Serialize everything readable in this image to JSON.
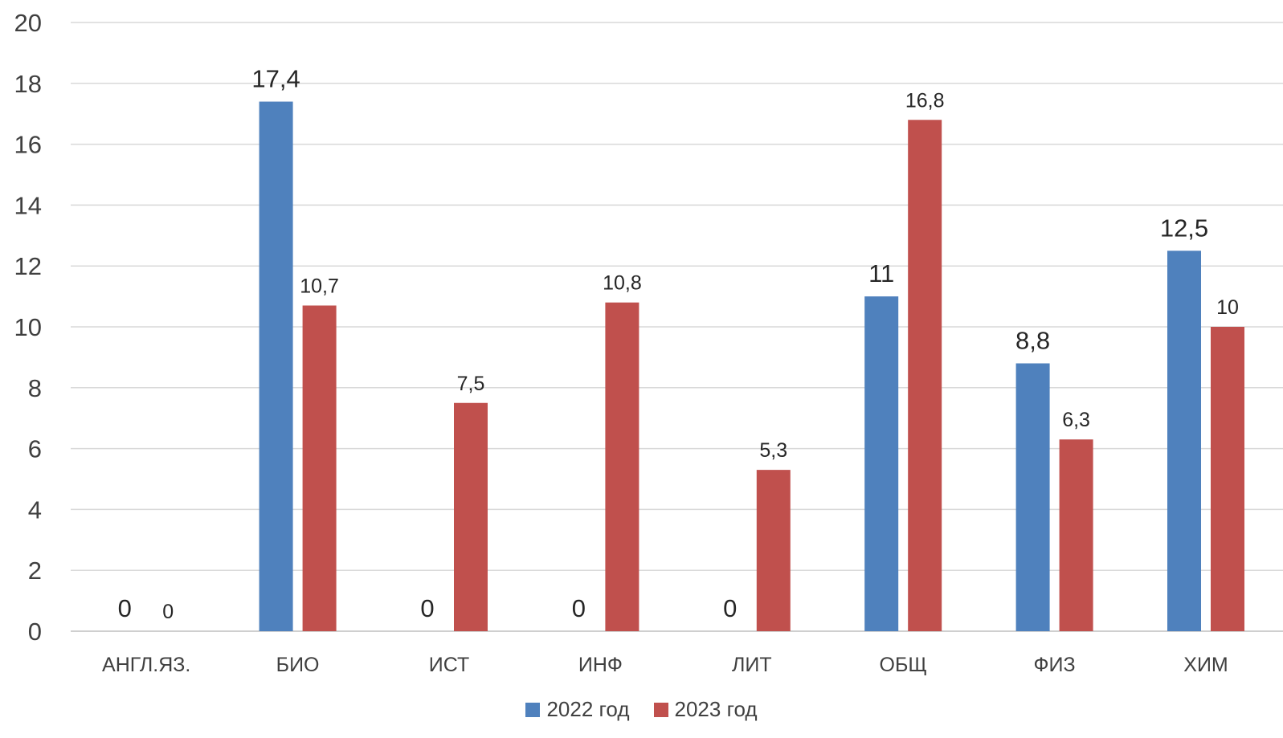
{
  "chart_data": {
    "type": "bar",
    "categories": [
      "АНГЛ.ЯЗ.",
      "БИО",
      "ИСТ",
      "ИНФ",
      "ЛИТ",
      "ОБЩ",
      "ФИЗ",
      "ХИМ"
    ],
    "series": [
      {
        "name": "2022 год",
        "color": "#4f81bd",
        "values": [
          0,
          17.4,
          0,
          0,
          0,
          11,
          8.8,
          12.5
        ],
        "labels": [
          "0",
          "17,4",
          "0",
          "0",
          "0",
          "11",
          "8,8",
          "12,5"
        ]
      },
      {
        "name": "2023 год",
        "color": "#c0504d",
        "values": [
          0,
          10.7,
          7.5,
          10.8,
          5.3,
          16.8,
          6.3,
          10
        ],
        "labels": [
          "0",
          "10,7",
          "7,5",
          "10,8",
          "5,3",
          "16,8",
          "6,3",
          "10"
        ]
      }
    ],
    "ylim": [
      0,
      20
    ],
    "yticks": [
      0,
      2,
      4,
      6,
      8,
      10,
      12,
      14,
      16,
      18,
      20
    ],
    "grid": true,
    "legend_position": "bottom",
    "title": "",
    "xlabel": "",
    "ylabel": ""
  }
}
